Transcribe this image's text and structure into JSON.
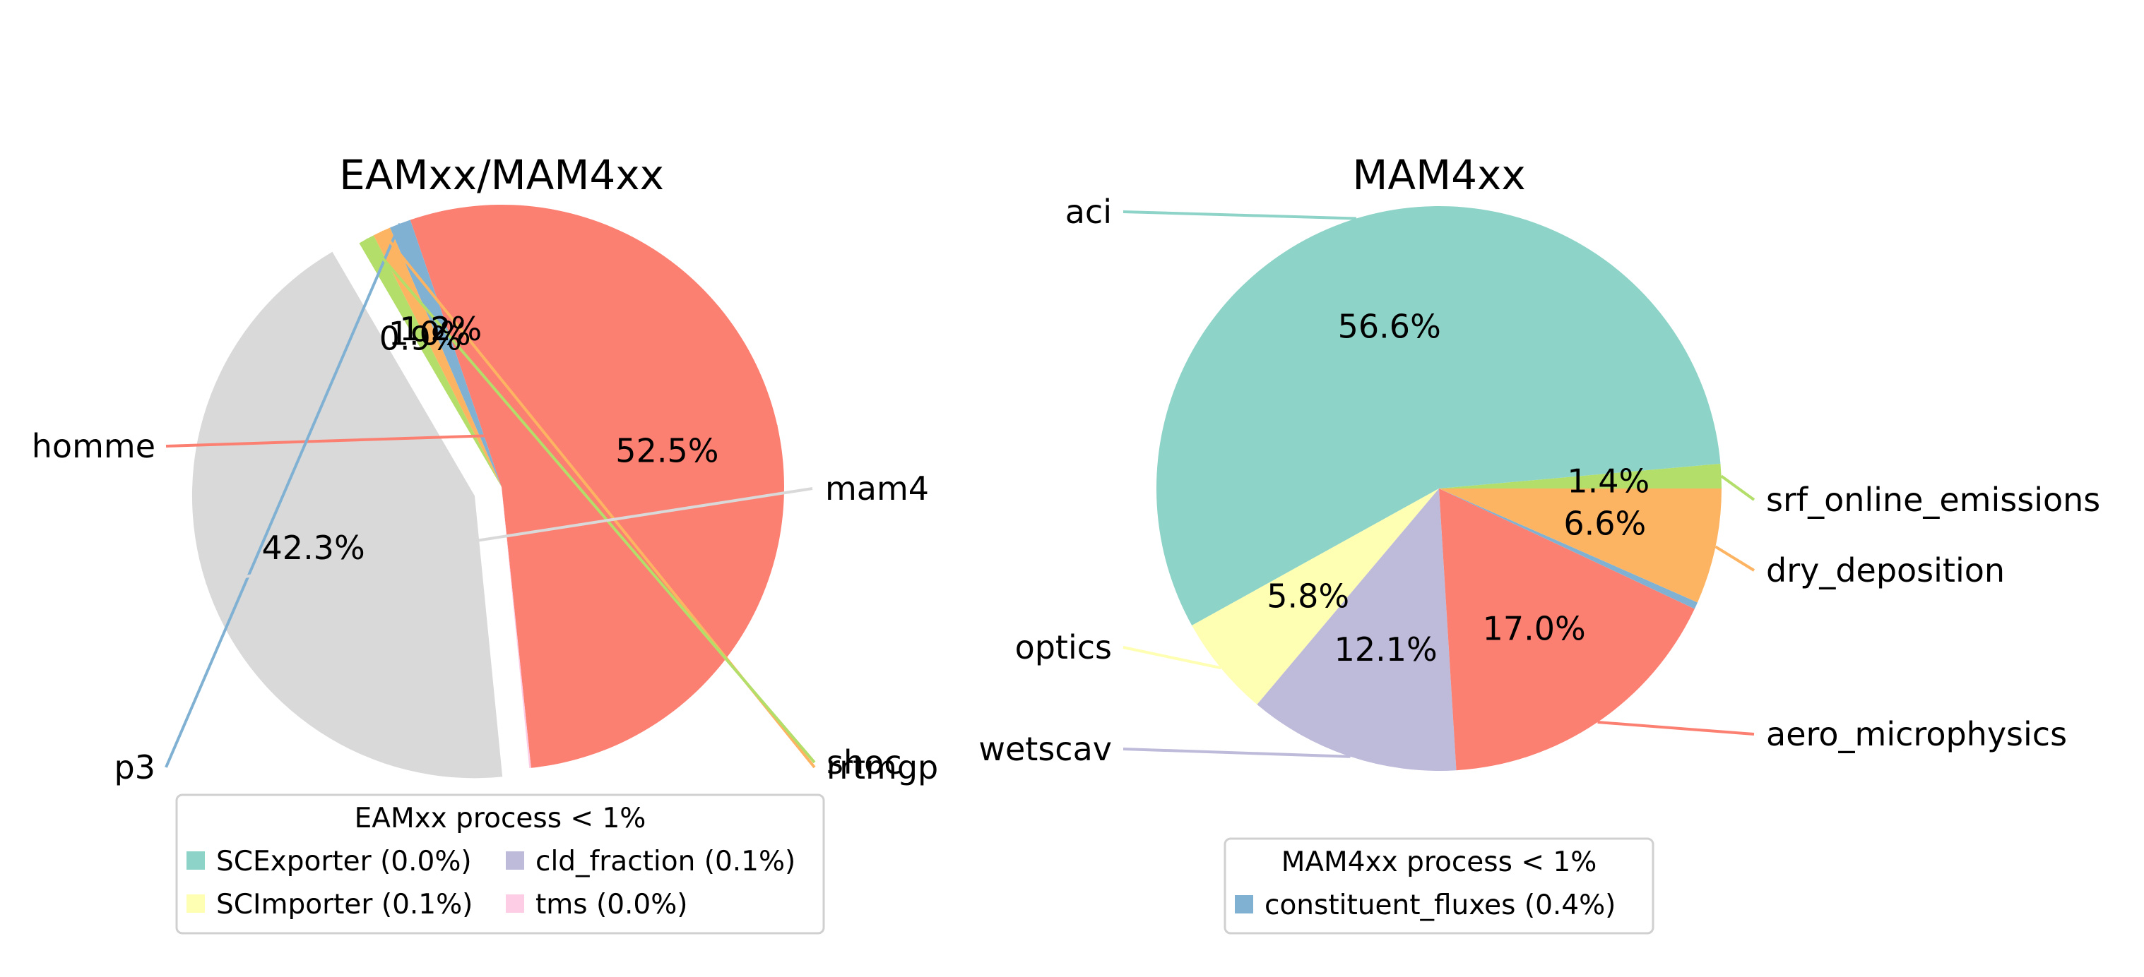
{
  "chart_data": [
    {
      "type": "pie",
      "title": "EAMxx/MAM4xx",
      "slices": [
        {
          "label": "homme",
          "value": 52.5,
          "pct_label": "52.5%",
          "color": "#fb8072"
        },
        {
          "label": "p3",
          "value": 1.2,
          "pct_label": "1.2%",
          "color": "#80b1d3"
        },
        {
          "label": "rrtmgp",
          "value": 1.0,
          "pct_label": "1.0%",
          "color": "#fdb462"
        },
        {
          "label": "shoc",
          "value": 0.9,
          "pct_label": "0.9%",
          "color": "#b3de69"
        },
        {
          "label": "mam4",
          "value": 42.3,
          "pct_label": "42.3%",
          "color": "#d9d9d9",
          "exploded": true
        },
        {
          "label": "",
          "value": 0.1,
          "pct_label": "",
          "color": "#fccde5"
        }
      ],
      "legend": {
        "title": "EAMxx process < 1%",
        "placement": "bottom",
        "entries": [
          {
            "label": "SCExporter (0.0%)",
            "color": "#8dd3c7"
          },
          {
            "label": "cld_fraction (0.1%)",
            "color": "#bebada"
          },
          {
            "label": "SCImporter (0.1%)",
            "color": "#ffffb3"
          },
          {
            "label": "tms (0.0%)",
            "color": "#fccde5"
          }
        ]
      }
    },
    {
      "type": "pie",
      "title": "MAM4xx",
      "slices": [
        {
          "label": "srf_online_emissions",
          "value": 1.4,
          "pct_label": "1.4%",
          "color": "#b3de69"
        },
        {
          "label": "aci",
          "value": 56.6,
          "pct_label": "56.6%",
          "color": "#8dd3c7"
        },
        {
          "label": "optics",
          "value": 5.8,
          "pct_label": "5.8%",
          "color": "#ffffb3"
        },
        {
          "label": "wetscav",
          "value": 12.1,
          "pct_label": "12.1%",
          "color": "#bebada"
        },
        {
          "label": "aero_microphysics",
          "value": 17.0,
          "pct_label": "17.0%",
          "color": "#fb8072"
        },
        {
          "label": "",
          "value": 0.4,
          "pct_label": "",
          "color": "#80b1d3"
        },
        {
          "label": "dry_deposition",
          "value": 6.6,
          "pct_label": "6.6%",
          "color": "#fdb462"
        }
      ],
      "legend": {
        "title": "MAM4xx process < 1%",
        "placement": "bottom",
        "entries": [
          {
            "label": "constituent_fluxes (0.4%)",
            "color": "#80b1d3"
          }
        ]
      }
    }
  ]
}
